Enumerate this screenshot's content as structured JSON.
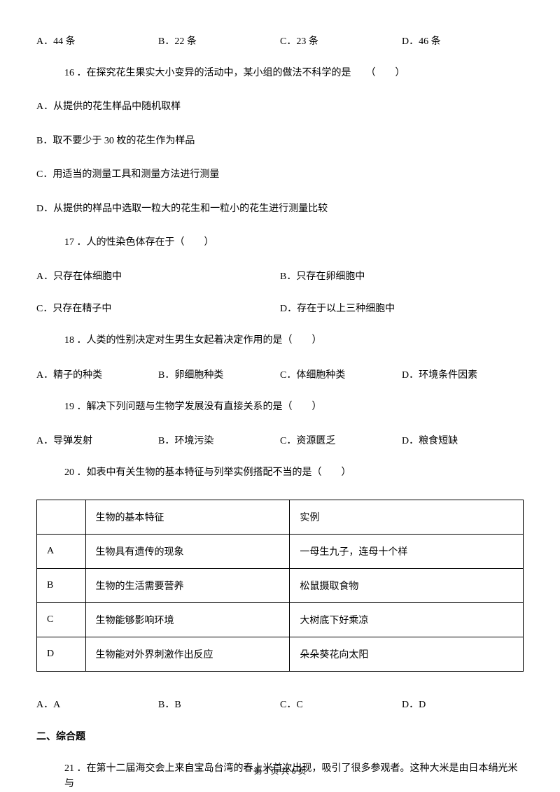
{
  "q15": {
    "optionA": "A．44 条",
    "optionB": "B．22 条",
    "optionC": "C．23 条",
    "optionD": "D．46 条"
  },
  "q16": {
    "stem": "16 ．在探究花生果实大小变异的活动中，某小组的做法不科学的是　　（　　）",
    "optionA": "A．从提供的花生样品中随机取样",
    "optionB": "B．取不要少于 30 枚的花生作为样品",
    "optionC": "C．用适当的测量工具和测量方法进行测量",
    "optionD": "D．从提供的样品中选取一粒大的花生和一粒小的花生进行测量比较"
  },
  "q17": {
    "stem": "17 ．人的性染色体存在于（　　）",
    "optionA": "A．只存在体细胞中",
    "optionB": "B．只存在卵细胞中",
    "optionC": "C．只存在精子中",
    "optionD": "D．存在于以上三种细胞中"
  },
  "q18": {
    "stem": "18 ．人类的性别决定对生男生女起着决定作用的是（　　）",
    "optionA": "A．精子的种类",
    "optionB": "B．卵细胞种类",
    "optionC": "C．体细胞种类",
    "optionD": "D．环境条件因素"
  },
  "q19": {
    "stem": "19 ．解决下列问题与生物学发展没有直接关系的是（　　）",
    "optionA": "A．导弹发射",
    "optionB": "B．环境污染",
    "optionC": "C．资源匮乏",
    "optionD": "D．粮食短缺"
  },
  "q20": {
    "stem": "20 ．如表中有关生物的基本特征与列举实例搭配不当的是（　　）",
    "table": {
      "header": {
        "c1": "",
        "c2": "生物的基本特征",
        "c3": "实例"
      },
      "rows": [
        {
          "c1": "A",
          "c2": "生物具有遗传的现象",
          "c3": "一母生九子，连母十个样"
        },
        {
          "c1": "B",
          "c2": "生物的生活需要营养",
          "c3": "松鼠摄取食物"
        },
        {
          "c1": "C",
          "c2": "生物能够影响环境",
          "c3": "大树底下好乘凉"
        },
        {
          "c1": "D",
          "c2": "生物能对外界刺激作出反应",
          "c3": "朵朵葵花向太阳"
        }
      ]
    },
    "optionA": "A．A",
    "optionB": "B．B",
    "optionC": "C．C",
    "optionD": "D．D"
  },
  "section2": "二、综合题",
  "q21": {
    "stem": "21 ．在第十二届海交会上来自宝岛台湾的春上米首次出现，吸引了很多参观者。这种大米是由日本绢光米与"
  },
  "footer": "第 3 页 共 6 页"
}
